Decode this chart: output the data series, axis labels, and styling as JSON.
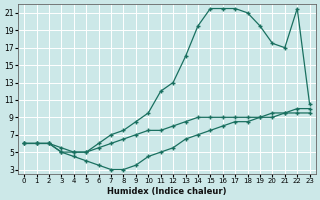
{
  "xlabel": "Humidex (Indice chaleur)",
  "bg_color": "#cce8e8",
  "grid_color": "#ffffff",
  "line_color": "#1a7060",
  "xlim": [
    -0.5,
    23.5
  ],
  "ylim": [
    2.5,
    22
  ],
  "xticks": [
    0,
    1,
    2,
    3,
    4,
    5,
    6,
    7,
    8,
    9,
    10,
    11,
    12,
    13,
    14,
    15,
    16,
    17,
    18,
    19,
    20,
    21,
    22,
    23
  ],
  "yticks": [
    3,
    5,
    7,
    9,
    11,
    13,
    15,
    17,
    19,
    21
  ],
  "curve_upper_x": [
    0,
    1,
    2,
    3,
    4,
    5,
    6,
    7,
    8,
    9,
    10,
    11,
    12,
    13,
    14,
    15,
    16,
    17,
    18,
    19,
    20,
    21,
    22,
    23
  ],
  "curve_upper_y": [
    6,
    6,
    6,
    5,
    5,
    5,
    6,
    7,
    7.5,
    8.5,
    9.5,
    12,
    13,
    16,
    19.5,
    21.5,
    21.5,
    21.5,
    21,
    19.5,
    17.5,
    17,
    21.5,
    10.5
  ],
  "curve_diag_x": [
    0,
    1,
    2,
    3,
    4,
    5,
    6,
    7,
    8,
    9,
    10,
    11,
    12,
    13,
    14,
    15,
    16,
    17,
    18,
    19,
    20,
    21,
    22,
    23
  ],
  "curve_diag_y": [
    6,
    6,
    6,
    5.5,
    5,
    5,
    5.5,
    6,
    6.5,
    7,
    7.5,
    7.5,
    8,
    8.5,
    9,
    9,
    9,
    9,
    9,
    9,
    9,
    9.5,
    9.5,
    9.5
  ],
  "curve_dip_x": [
    0,
    1,
    2,
    3,
    4,
    5,
    6,
    7,
    8,
    9,
    10,
    11,
    12,
    13,
    14,
    15,
    16,
    17,
    18,
    19,
    20,
    21,
    22,
    23
  ],
  "curve_dip_y": [
    6,
    6,
    6,
    5,
    4.5,
    4,
    3.5,
    3,
    3,
    3.5,
    4.5,
    5,
    5.5,
    6.5,
    7,
    7.5,
    8,
    8.5,
    8.5,
    9,
    9.5,
    9.5,
    10,
    10
  ],
  "marker_size": 2.5,
  "line_width": 0.9
}
